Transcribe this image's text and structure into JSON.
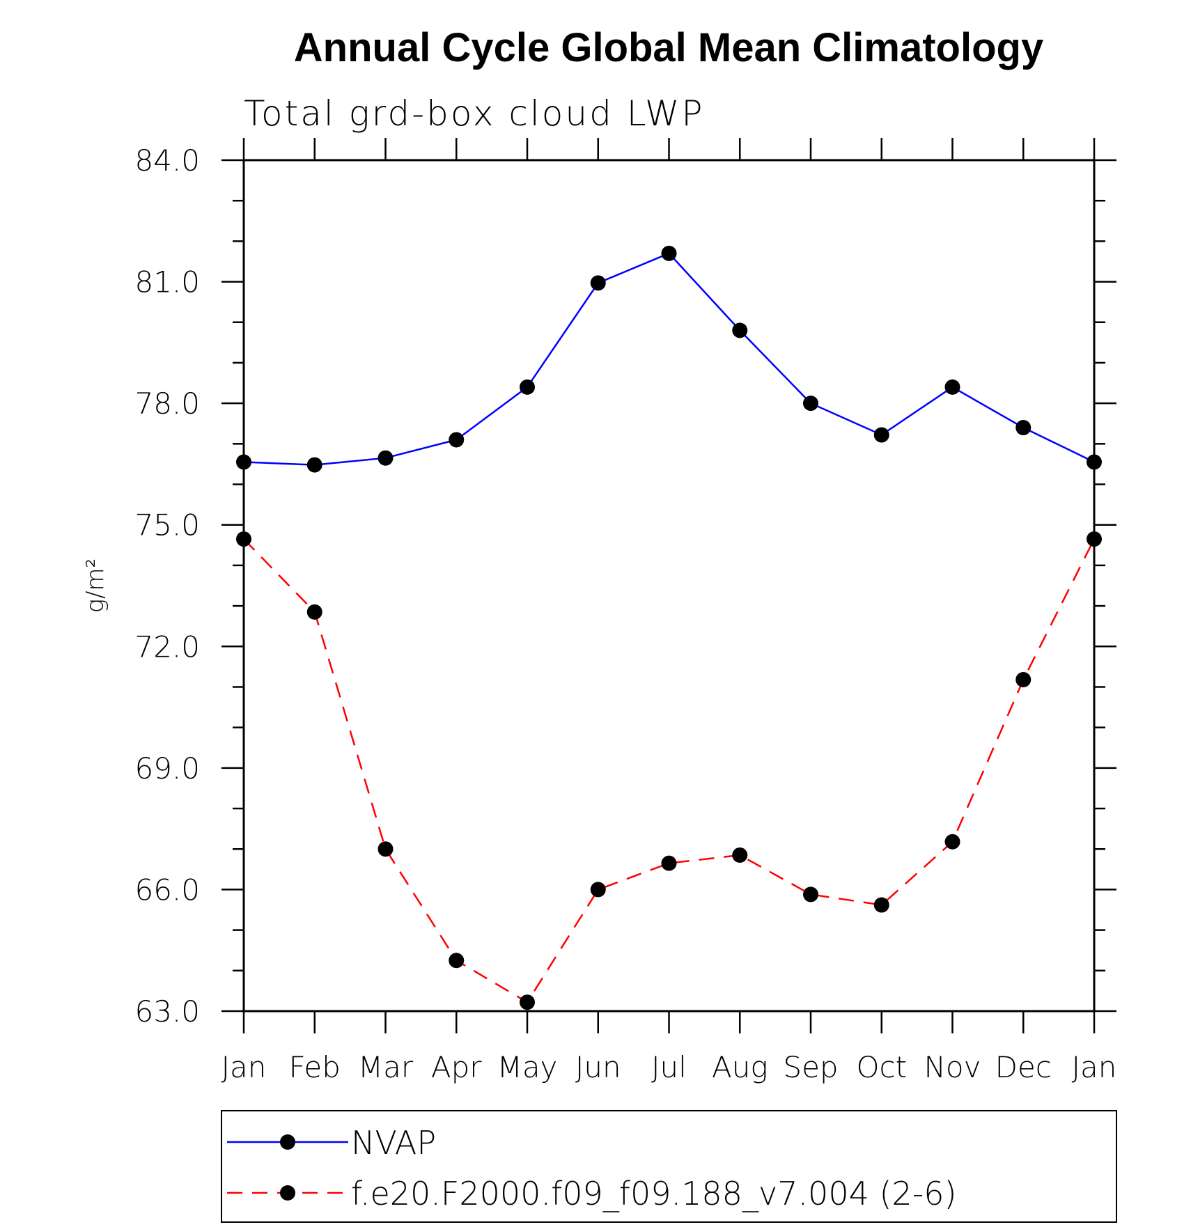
{
  "chart_data": {
    "type": "line",
    "title": "Annual Cycle Global Mean Climatology",
    "subtitle": "Total grd-box cloud LWP",
    "ylabel": "g/m²",
    "xlabel": "",
    "categories": [
      "Jan",
      "Feb",
      "Mar",
      "Apr",
      "May",
      "Jun",
      "Jul",
      "Aug",
      "Sep",
      "Oct",
      "Nov",
      "Dec",
      "Jan"
    ],
    "ylim": [
      63.0,
      84.0
    ],
    "yticks": [
      "84.0",
      "81.0",
      "78.0",
      "75.0",
      "72.0",
      "69.0",
      "66.0",
      "63.0"
    ],
    "ytick_values": [
      84,
      81,
      78,
      75,
      72,
      69,
      66,
      63
    ],
    "grid": false,
    "legend_position": "bottom",
    "series": [
      {
        "name": "NVAP",
        "color": "#0000ff",
        "style": "solid",
        "marker": "filled-circle",
        "values": [
          76.55,
          76.48,
          76.65,
          77.1,
          78.4,
          80.97,
          81.7,
          79.8,
          78.0,
          77.22,
          78.4,
          77.4,
          76.55
        ]
      },
      {
        "name": "f.e20.F2000.f09_f09.188_v7.004 (2-6)",
        "color": "#ff0000",
        "style": "dashed",
        "marker": "filled-circle",
        "values": [
          74.65,
          72.85,
          67.0,
          64.25,
          63.22,
          66.0,
          66.65,
          66.85,
          65.88,
          65.62,
          67.18,
          71.18,
          74.65
        ]
      }
    ]
  }
}
